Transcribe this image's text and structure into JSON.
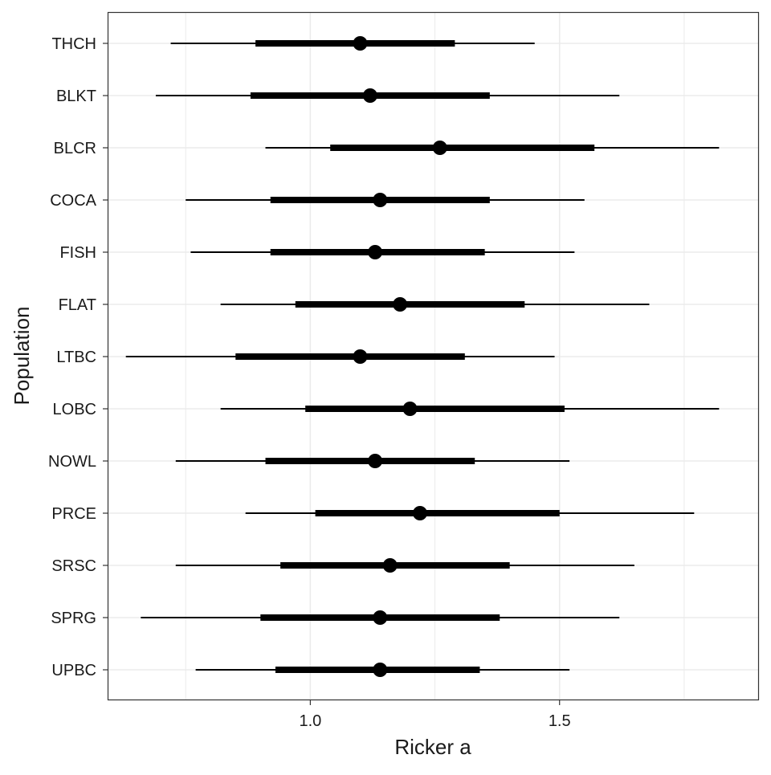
{
  "chart_data": {
    "type": "interval",
    "title": "",
    "xlabel": "Ricker a",
    "ylabel": "Population",
    "xlim": [
      0.595,
      1.9
    ],
    "xticks": [
      1.0,
      1.5
    ],
    "xtick_labels": [
      "1.0",
      "1.5"
    ],
    "grid": true,
    "legend": "none",
    "colors": {
      "mark": "#000000",
      "grid": "#ebebeb",
      "panel_border": "#333333",
      "background": "#ffffff"
    },
    "populations": [
      {
        "name": "THCH",
        "median": 1.1,
        "inner": [
          0.89,
          1.29
        ],
        "outer": [
          0.72,
          1.45
        ]
      },
      {
        "name": "BLKT",
        "median": 1.12,
        "inner": [
          0.88,
          1.36
        ],
        "outer": [
          0.69,
          1.62
        ]
      },
      {
        "name": "BLCR",
        "median": 1.26,
        "inner": [
          1.04,
          1.57
        ],
        "outer": [
          0.91,
          1.82
        ]
      },
      {
        "name": "COCA",
        "median": 1.14,
        "inner": [
          0.92,
          1.36
        ],
        "outer": [
          0.75,
          1.55
        ]
      },
      {
        "name": "FISH",
        "median": 1.13,
        "inner": [
          0.92,
          1.35
        ],
        "outer": [
          0.76,
          1.53
        ]
      },
      {
        "name": "FLAT",
        "median": 1.18,
        "inner": [
          0.97,
          1.43
        ],
        "outer": [
          0.82,
          1.68
        ]
      },
      {
        "name": "LTBC",
        "median": 1.1,
        "inner": [
          0.85,
          1.31
        ],
        "outer": [
          0.63,
          1.49
        ]
      },
      {
        "name": "LOBC",
        "median": 1.2,
        "inner": [
          0.99,
          1.51
        ],
        "outer": [
          0.82,
          1.82
        ]
      },
      {
        "name": "NOWL",
        "median": 1.13,
        "inner": [
          0.91,
          1.33
        ],
        "outer": [
          0.73,
          1.52
        ]
      },
      {
        "name": "PRCE",
        "median": 1.22,
        "inner": [
          1.01,
          1.5
        ],
        "outer": [
          0.87,
          1.77
        ]
      },
      {
        "name": "SRSC",
        "median": 1.16,
        "inner": [
          0.94,
          1.4
        ],
        "outer": [
          0.73,
          1.65
        ]
      },
      {
        "name": "SPRG",
        "median": 1.14,
        "inner": [
          0.9,
          1.38
        ],
        "outer": [
          0.66,
          1.62
        ]
      },
      {
        "name": "UPBC",
        "median": 1.14,
        "inner": [
          0.93,
          1.34
        ],
        "outer": [
          0.77,
          1.52
        ]
      }
    ]
  }
}
